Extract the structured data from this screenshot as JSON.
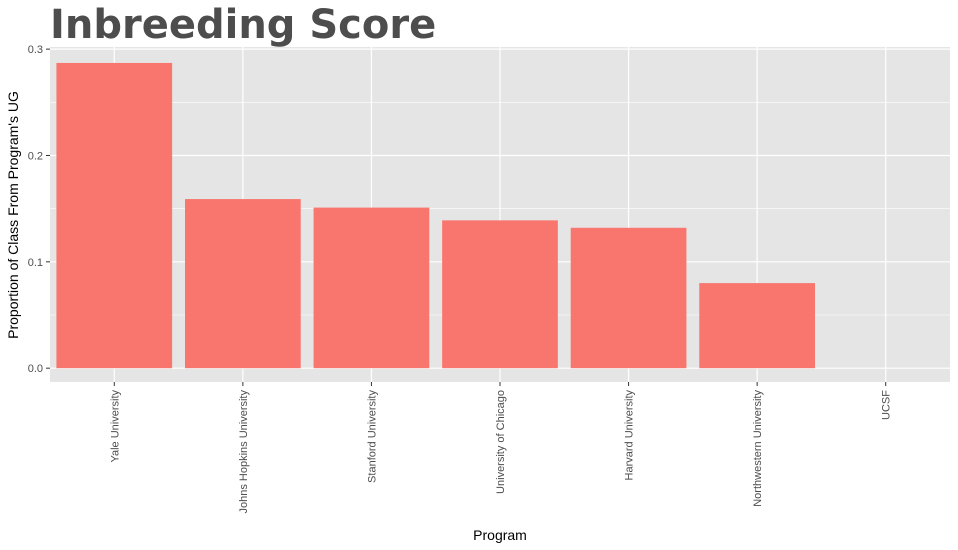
{
  "chart_data": {
    "type": "bar",
    "title": "Inbreeding Score",
    "xlabel": "Program",
    "ylabel": "Proportion of Class From Program's UG",
    "categories": [
      "Yale University",
      "Johns Hopkins University",
      "Stanford University",
      "University of Chicago",
      "Harvard University",
      "Northwestern University",
      "UCSF"
    ],
    "values": [
      0.287,
      0.159,
      0.151,
      0.139,
      0.132,
      0.08,
      0.0
    ],
    "ylim": [
      -0.013,
      0.302
    ],
    "yticks": [
      0.0,
      0.1,
      0.2,
      0.3
    ],
    "ytick_labels": [
      "0.0",
      "0.1",
      "0.2",
      "0.3"
    ],
    "grid": true,
    "legend": "none",
    "bar_color": "#F8766D",
    "panel_color": "#E5E5E5",
    "grid_color": "#FFFFFF"
  }
}
